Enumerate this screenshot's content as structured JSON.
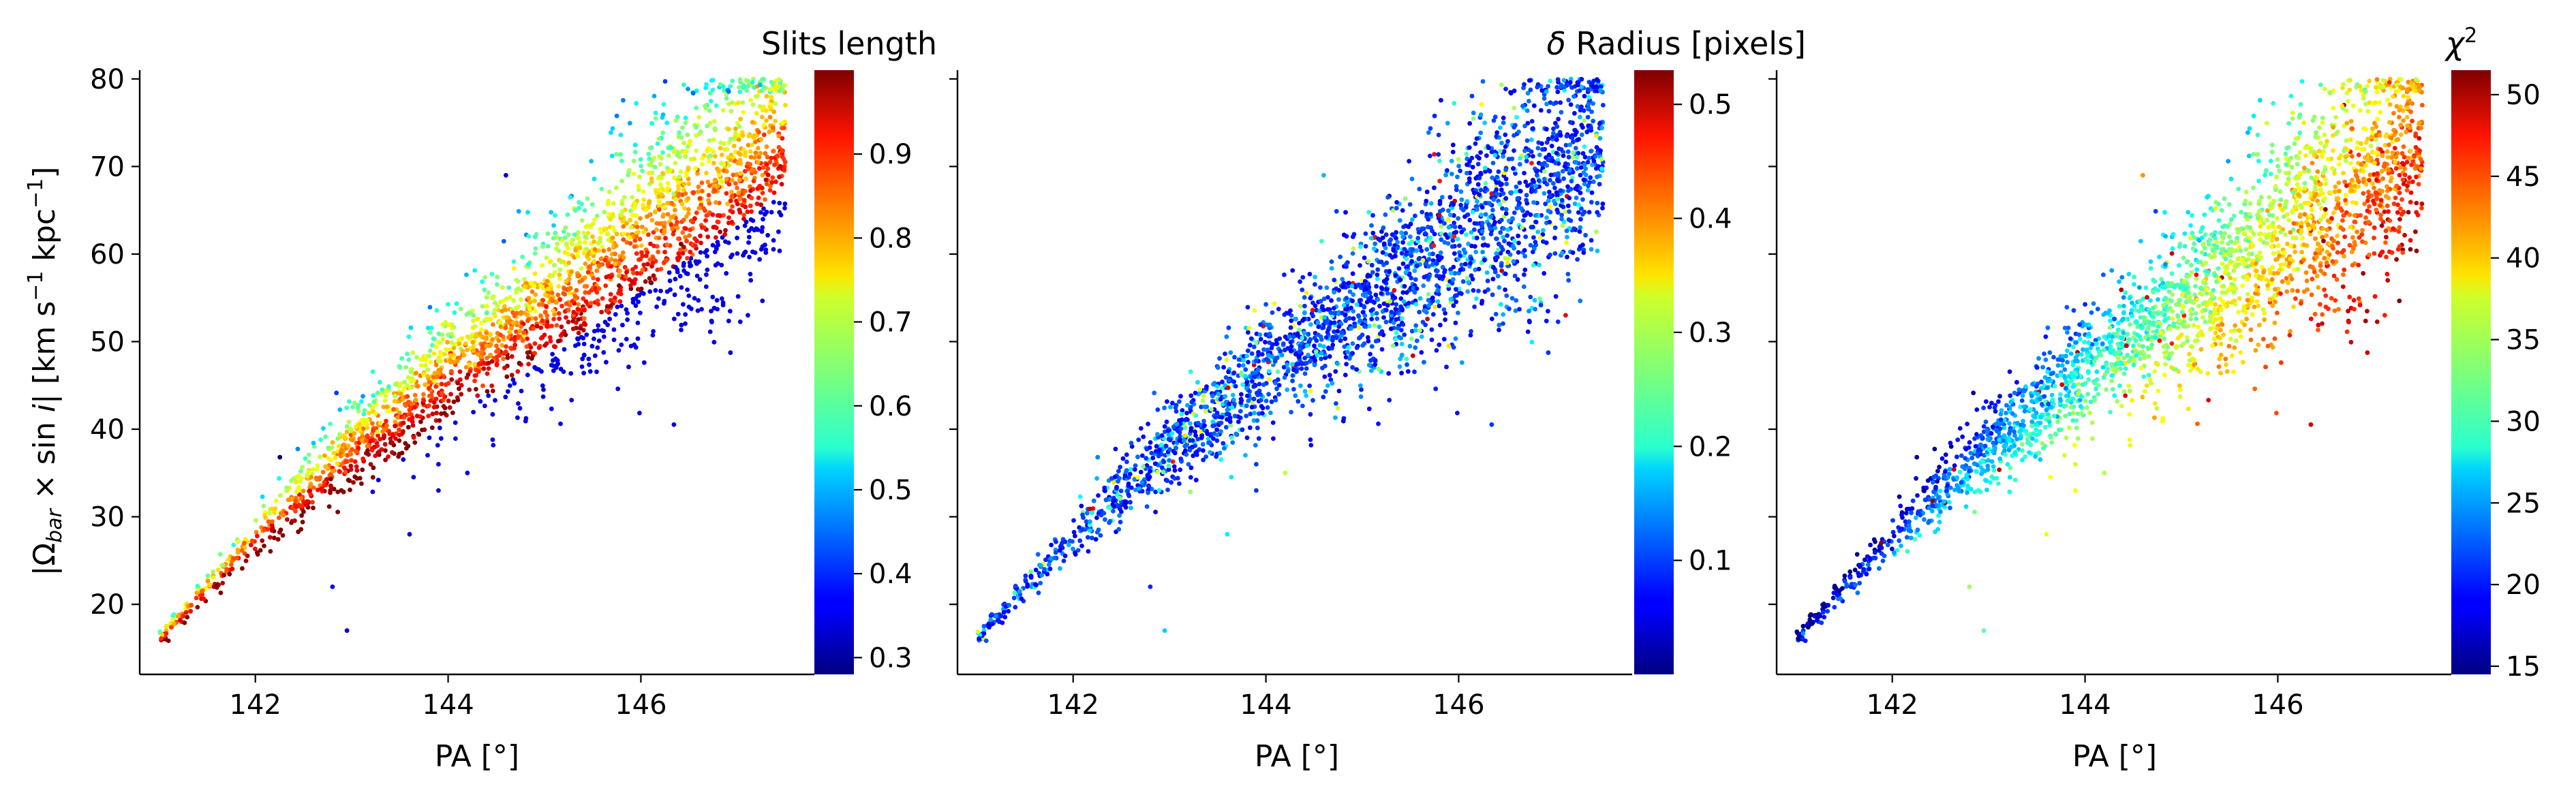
{
  "chart_data": [
    {
      "type": "scatter",
      "xlabel": "PA [°]",
      "ylabel": "|Ωbar × sin i|   [km s⁻¹ kpc⁻¹]",
      "ylabel_parts": [
        "|Ω",
        "bar",
        " × sin ",
        "i",
        "|   [km s",
        "−1",
        " kpc",
        "−1",
        "]"
      ],
      "xlim": [
        140.8,
        147.8
      ],
      "ylim": [
        12,
        81
      ],
      "xticks": [
        "142",
        "144",
        "146"
      ],
      "xtick_values": [
        142,
        144,
        146
      ],
      "yticks": [
        "20",
        "30",
        "40",
        "50",
        "60",
        "70",
        "80"
      ],
      "ytick_values": [
        20,
        30,
        40,
        50,
        60,
        70,
        80
      ],
      "colorbar": {
        "label": "Slits length",
        "vmin": 0.28,
        "vmax": 1.0,
        "ticks": [
          "0.3",
          "0.4",
          "0.5",
          "0.6",
          "0.7",
          "0.8",
          "0.9"
        ],
        "tick_values": [
          0.3,
          0.4,
          0.5,
          0.6,
          0.7,
          0.8,
          0.9
        ],
        "colormap": "jet"
      }
    },
    {
      "type": "scatter",
      "xlabel": "PA [°]",
      "xlim": [
        140.8,
        147.8
      ],
      "ylim": [
        12,
        81
      ],
      "xticks": [
        "142",
        "144",
        "146"
      ],
      "xtick_values": [
        142,
        144,
        146
      ],
      "colorbar": {
        "label": "δ Radius [pixels]",
        "label_parts": [
          "δ",
          " Radius [pixels]"
        ],
        "vmin": 0.0,
        "vmax": 0.53,
        "ticks": [
          "0.1",
          "0.2",
          "0.3",
          "0.4",
          "0.5"
        ],
        "tick_values": [
          0.1,
          0.2,
          0.3,
          0.4,
          0.5
        ],
        "colormap": "jet"
      }
    },
    {
      "type": "scatter",
      "xlabel": "PA [°]",
      "xlim": [
        140.8,
        147.8
      ],
      "ylim": [
        12,
        81
      ],
      "xticks": [
        "142",
        "144",
        "146"
      ],
      "xtick_values": [
        142,
        144,
        146
      ],
      "colorbar": {
        "label": "χ2",
        "label_parts": [
          "χ",
          "2"
        ],
        "vmin": 14.5,
        "vmax": 51.5,
        "ticks": [
          "15",
          "20",
          "25",
          "30",
          "35",
          "40",
          "45",
          "50"
        ],
        "tick_values": [
          15,
          20,
          25,
          30,
          35,
          40,
          45,
          50
        ],
        "colormap": "jet"
      }
    }
  ],
  "description_of_cloud": {
    "centerline_x": [
      141.0,
      142.0,
      143.0,
      144.0,
      145.0,
      146.0,
      147.0,
      147.5
    ],
    "centerline_y": [
      16,
      28,
      38,
      47,
      54,
      62,
      69,
      74
    ]
  }
}
